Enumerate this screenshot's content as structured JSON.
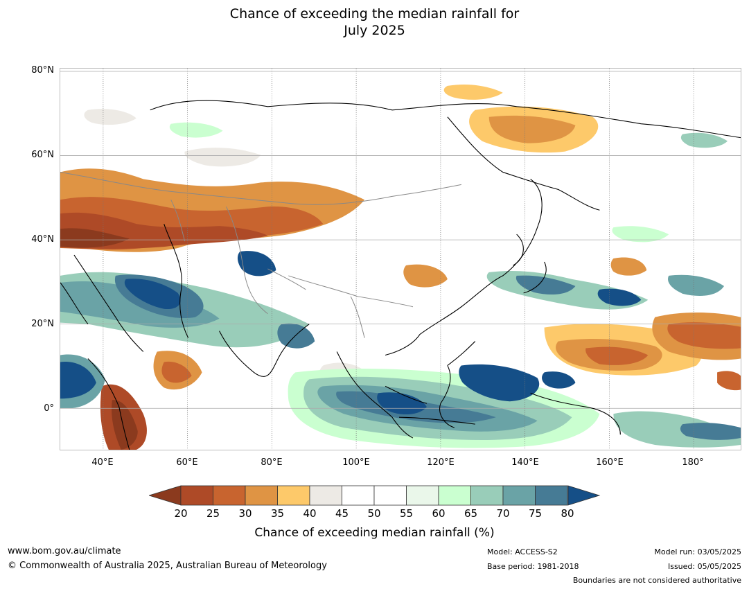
{
  "title_line1": "Chance of exceeding the median rainfall for",
  "title_line2": "July 2025",
  "lat_labels": [
    "80°N",
    "60°N",
    "40°N",
    "20°N",
    "0°"
  ],
  "lon_labels": [
    "40°E",
    "60°E",
    "80°E",
    "100°E",
    "120°E",
    "140°E",
    "160°E",
    "180°"
  ],
  "colorbar": {
    "ticks": [
      "20",
      "25",
      "30",
      "35",
      "40",
      "45",
      "50",
      "55",
      "60",
      "65",
      "70",
      "75",
      "80"
    ],
    "label": "Chance of exceeding median rainfall (%)",
    "colors": [
      "#8b3a1e",
      "#ae4a27",
      "#c8642f",
      "#df9444",
      "#fdc96a",
      "#edeae5",
      "#ffffff",
      "#ffffff",
      "#eaf7ea",
      "#caffd0",
      "#99cdb9",
      "#6aa3a6",
      "#467b95",
      "#154f87"
    ]
  },
  "footer": {
    "website": "www.bom.gov.au/climate",
    "copyright": "© Commonwealth of Australia 2025, Australian Bureau of Meteorology",
    "model": "Model: ACCESS-S2",
    "base_period": "Base period: 1981-2018",
    "model_run": "Model run: 03/05/2025",
    "issued": "Issued: 05/05/2025",
    "disclaimer": "Boundaries are not considered authoritative"
  }
}
